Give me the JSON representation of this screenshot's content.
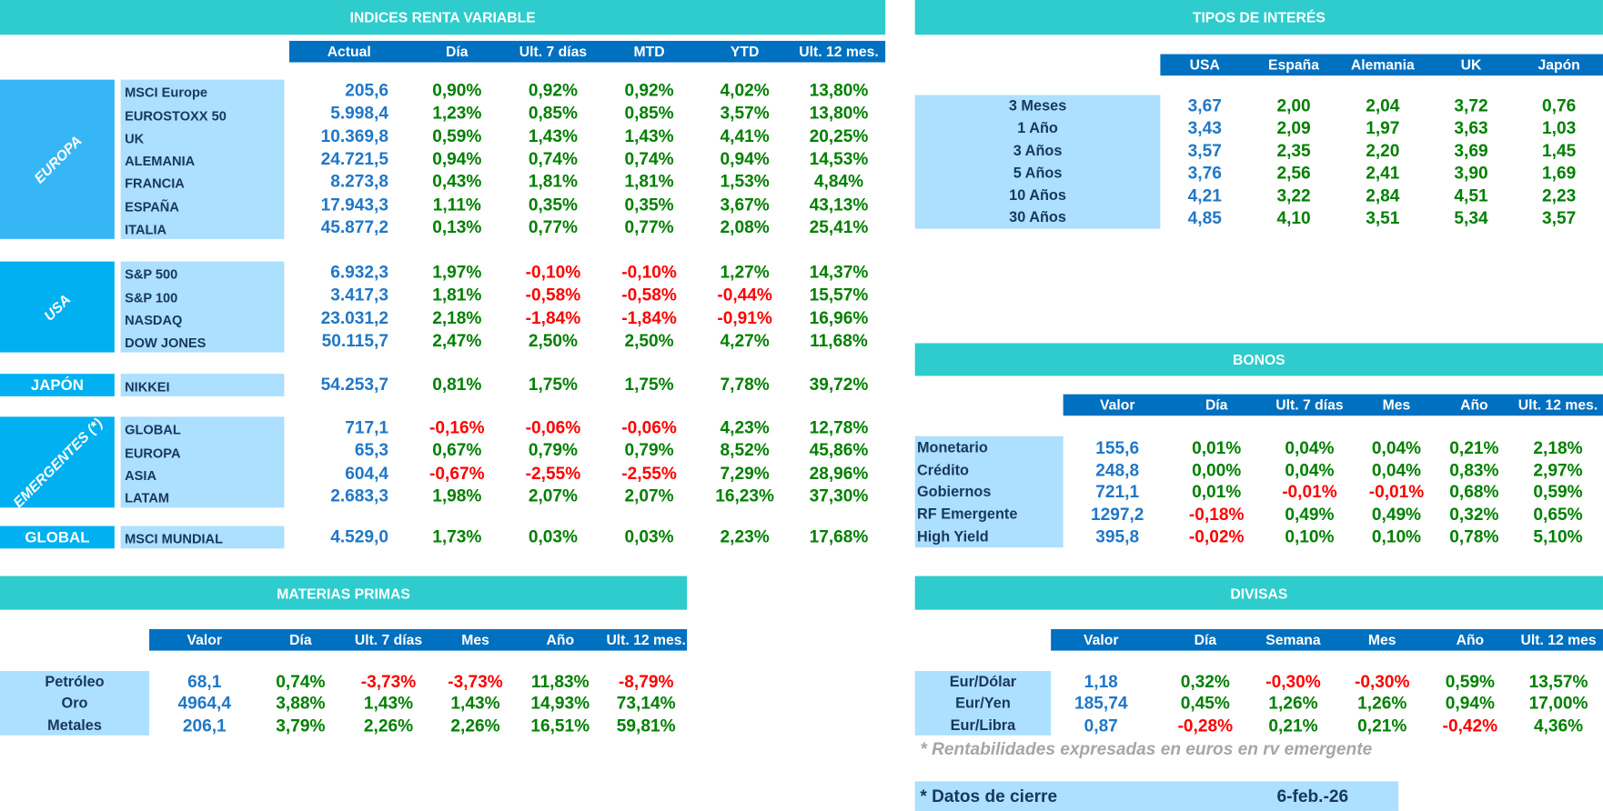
{
  "colors": {
    "section_header": "#2ECCCC",
    "column_header": "#0070C0",
    "label_fill": "#ADDFFF",
    "group_europa": "#37B6F6",
    "group_other": "#00B0F0",
    "value_blue": "#1F77C8",
    "positive": "#008000",
    "negative": "#FF0000",
    "label_text": "#17375E"
  },
  "renta_variable": {
    "title": "INDICES RENTA VARIABLE",
    "columns": [
      "Actual",
      "Día",
      "Ult. 7 días",
      "MTD",
      "YTD",
      "Ult. 12 mes."
    ],
    "groups": [
      {
        "label": "EUROPA",
        "rows": [
          {
            "name": "MSCI Europe",
            "values": [
              "205,6",
              "0,90%",
              "0,92%",
              "0,92%",
              "4,02%",
              "13,80%"
            ]
          },
          {
            "name": "EUROSTOXX 50",
            "values": [
              "5.998,4",
              "1,23%",
              "0,85%",
              "0,85%",
              "3,57%",
              "13,80%"
            ]
          },
          {
            "name": "UK",
            "values": [
              "10.369,8",
              "0,59%",
              "1,43%",
              "1,43%",
              "4,41%",
              "20,25%"
            ]
          },
          {
            "name": "ALEMANIA",
            "values": [
              "24.721,5",
              "0,94%",
              "0,74%",
              "0,74%",
              "0,94%",
              "14,53%"
            ]
          },
          {
            "name": "FRANCIA",
            "values": [
              "8.273,8",
              "0,43%",
              "1,81%",
              "1,81%",
              "1,53%",
              "4,84%"
            ]
          },
          {
            "name": "ESPAÑA",
            "values": [
              "17.943,3",
              "1,11%",
              "0,35%",
              "0,35%",
              "3,67%",
              "43,13%"
            ]
          },
          {
            "name": "ITALIA",
            "values": [
              "45.877,2",
              "0,13%",
              "0,77%",
              "0,77%",
              "2,08%",
              "25,41%"
            ]
          }
        ]
      },
      {
        "label": "USA",
        "rows": [
          {
            "name": "S&P 500",
            "values": [
              "6.932,3",
              "1,97%",
              "-0,10%",
              "-0,10%",
              "1,27%",
              "14,37%"
            ]
          },
          {
            "name": "S&P 100",
            "values": [
              "3.417,3",
              "1,81%",
              "-0,58%",
              "-0,58%",
              "-0,44%",
              "15,57%"
            ]
          },
          {
            "name": "NASDAQ",
            "values": [
              "23.031,2",
              "2,18%",
              "-1,84%",
              "-1,84%",
              "-0,91%",
              "16,96%"
            ]
          },
          {
            "name": "DOW JONES",
            "values": [
              "50.115,7",
              "2,47%",
              "2,50%",
              "2,50%",
              "4,27%",
              "11,68%"
            ]
          }
        ]
      },
      {
        "label": "JAPÓN",
        "rows": [
          {
            "name": "NIKKEI",
            "values": [
              "54.253,7",
              "0,81%",
              "1,75%",
              "1,75%",
              "7,78%",
              "39,72%"
            ]
          }
        ]
      },
      {
        "label": "EMERGENTES (*)",
        "rows": [
          {
            "name": "GLOBAL",
            "values": [
              "717,1",
              "-0,16%",
              "-0,06%",
              "-0,06%",
              "4,23%",
              "12,78%"
            ]
          },
          {
            "name": "EUROPA",
            "values": [
              "65,3",
              "0,67%",
              "0,79%",
              "0,79%",
              "8,52%",
              "45,86%"
            ]
          },
          {
            "name": "ASIA",
            "values": [
              "604,4",
              "-0,67%",
              "-2,55%",
              "-2,55%",
              "7,29%",
              "28,96%"
            ]
          },
          {
            "name": "LATAM",
            "values": [
              "2.683,3",
              "1,98%",
              "2,07%",
              "2,07%",
              "16,23%",
              "37,30%"
            ]
          }
        ]
      },
      {
        "label": "GLOBAL",
        "rows": [
          {
            "name": "MSCI MUNDIAL",
            "values": [
              "4.529,0",
              "1,73%",
              "0,03%",
              "0,03%",
              "2,23%",
              "17,68%"
            ]
          }
        ]
      }
    ]
  },
  "tipos_interes": {
    "title": "TIPOS DE INTERÉS",
    "columns": [
      "USA",
      "España",
      "Alemania",
      "UK",
      "Japón"
    ],
    "rows": [
      {
        "name": "3 Meses",
        "values": [
          "3,67",
          "2,00",
          "2,04",
          "3,72",
          "0,76"
        ]
      },
      {
        "name": "1 Año",
        "values": [
          "3,43",
          "2,09",
          "1,97",
          "3,63",
          "1,03"
        ]
      },
      {
        "name": "3 Años",
        "values": [
          "3,57",
          "2,35",
          "2,20",
          "3,69",
          "1,45"
        ]
      },
      {
        "name": "5 Años",
        "values": [
          "3,76",
          "2,56",
          "2,41",
          "3,90",
          "1,69"
        ]
      },
      {
        "name": "10 Años",
        "values": [
          "4,21",
          "3,22",
          "2,84",
          "4,51",
          "2,23"
        ]
      },
      {
        "name": "30 Años",
        "values": [
          "4,85",
          "4,10",
          "3,51",
          "5,34",
          "3,57"
        ]
      }
    ]
  },
  "bonos": {
    "title": "BONOS",
    "columns": [
      "Valor",
      "Día",
      "Ult. 7 días",
      "Mes",
      "Año",
      "Ult. 12 mes."
    ],
    "rows": [
      {
        "name": "Monetario",
        "values": [
          "155,6",
          "0,01%",
          "0,04%",
          "0,04%",
          "0,21%",
          "2,18%"
        ]
      },
      {
        "name": "Crédito",
        "values": [
          "248,8",
          "0,00%",
          "0,04%",
          "0,04%",
          "0,83%",
          "2,97%"
        ]
      },
      {
        "name": "Gobiernos",
        "values": [
          "721,1",
          "0,01%",
          "-0,01%",
          "-0,01%",
          "0,68%",
          "0,59%"
        ]
      },
      {
        "name": "RF Emergente",
        "values": [
          "1297,2",
          "-0,18%",
          "0,49%",
          "0,49%",
          "0,32%",
          "0,65%"
        ]
      },
      {
        "name": "High Yield",
        "values": [
          "395,8",
          "-0,02%",
          "0,10%",
          "0,10%",
          "0,78%",
          "5,10%"
        ]
      }
    ]
  },
  "materias_primas": {
    "title": "MATERIAS PRIMAS",
    "columns": [
      "Valor",
      "Día",
      "Ult. 7 días",
      "Mes",
      "Año",
      "Ult. 12 mes."
    ],
    "rows": [
      {
        "name": "Petróleo",
        "values": [
          "68,1",
          "0,74%",
          "-3,73%",
          "-3,73%",
          "11,83%",
          "-8,79%"
        ]
      },
      {
        "name": "Oro",
        "values": [
          "4964,4",
          "3,88%",
          "1,43%",
          "1,43%",
          "14,93%",
          "73,14%"
        ]
      },
      {
        "name": "Metales",
        "values": [
          "206,1",
          "3,79%",
          "2,26%",
          "2,26%",
          "16,51%",
          "59,81%"
        ]
      }
    ]
  },
  "divisas": {
    "title": "DIVISAS",
    "columns": [
      "Valor",
      "Día",
      "Semana",
      "Mes",
      "Año",
      "Ult. 12 mes"
    ],
    "rows": [
      {
        "name": "Eur/Dólar",
        "values": [
          "1,18",
          "0,32%",
          "-0,30%",
          "-0,30%",
          "0,59%",
          "13,57%"
        ]
      },
      {
        "name": "Eur/Yen",
        "values": [
          "185,74",
          "0,45%",
          "1,26%",
          "1,26%",
          "0,94%",
          "17,00%"
        ]
      },
      {
        "name": "Eur/Libra",
        "values": [
          "0,87",
          "-0,28%",
          "0,21%",
          "0,21%",
          "-0,42%",
          "4,36%"
        ]
      }
    ]
  },
  "footnote": "* Rentabilidades expresadas en euros en rv emergente",
  "closing": {
    "label": "* Datos de cierre",
    "date": "6-feb.-26"
  }
}
